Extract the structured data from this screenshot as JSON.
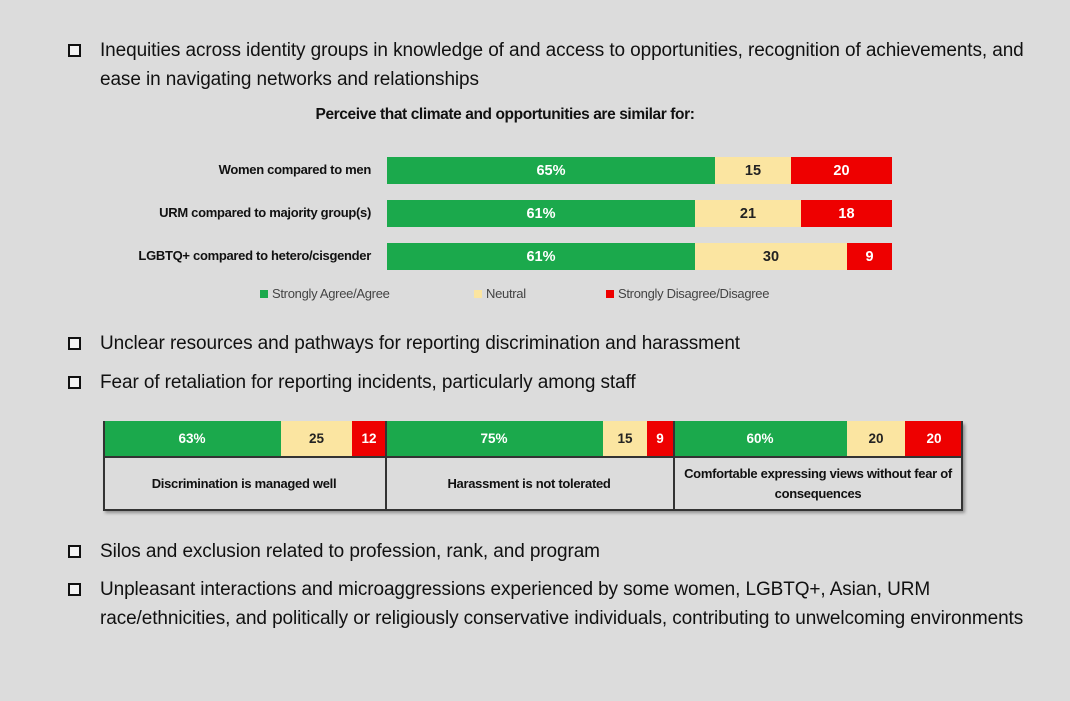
{
  "bullets": [
    "Inequities across identity groups in knowledge of and access to opportunities, recognition of achievements, and ease in navigating networks and relationships",
    "Unclear resources and pathways for reporting discrimination and harassment",
    "Fear of retaliation for reporting incidents, particularly among staff",
    "Silos and exclusion related to profession, rank, and program",
    "Unpleasant interactions and microaggressions experienced by some women, LGBTQ+, Asian, URM race/ethnicities, and politically or religiously conservative individuals, contributing to unwelcoming environments"
  ],
  "colors": {
    "agree": "#1ba94c",
    "neutral": "#fbe5a1",
    "disagree": "#ee0000"
  },
  "chart_data": [
    {
      "type": "bar",
      "orientation": "horizontal-stacked-100",
      "title": "Perceive that climate and opportunities are similar for:",
      "categories": [
        "Women compared to men",
        "URM compared to majority group(s)",
        "LGBTQ+ compared to hetero/cisgender"
      ],
      "series": [
        {
          "name": "Strongly Agree/Agree",
          "values": [
            65,
            61,
            61
          ],
          "labels": [
            "65%",
            "61%",
            "61%"
          ]
        },
        {
          "name": "Neutral",
          "values": [
            15,
            21,
            30
          ],
          "labels": [
            "15",
            "21",
            "30"
          ]
        },
        {
          "name": "Strongly Disagree/Disagree",
          "values": [
            20,
            18,
            9
          ],
          "labels": [
            "20",
            "18",
            "9"
          ]
        }
      ],
      "legend": [
        "Strongly Agree/Agree",
        "Neutral",
        "Strongly Disagree/Disagree"
      ],
      "legend_position": "bottom"
    },
    {
      "type": "table",
      "layout": "stacked-100-bars-with-captions",
      "categories": [
        "Discrimination is managed well",
        "Harassment is not tolerated",
        "Comfortable expressing views without fear of consequences"
      ],
      "series": [
        {
          "name": "Strongly Agree/Agree",
          "values": [
            63,
            75,
            60
          ],
          "labels": [
            "63%",
            "75%",
            "60%"
          ]
        },
        {
          "name": "Neutral",
          "values": [
            25,
            15,
            20
          ],
          "labels": [
            "25",
            "15",
            "20"
          ]
        },
        {
          "name": "Strongly Disagree/Disagree",
          "values": [
            12,
            9,
            20
          ],
          "labels": [
            "12",
            "9",
            "20"
          ]
        }
      ]
    }
  ]
}
